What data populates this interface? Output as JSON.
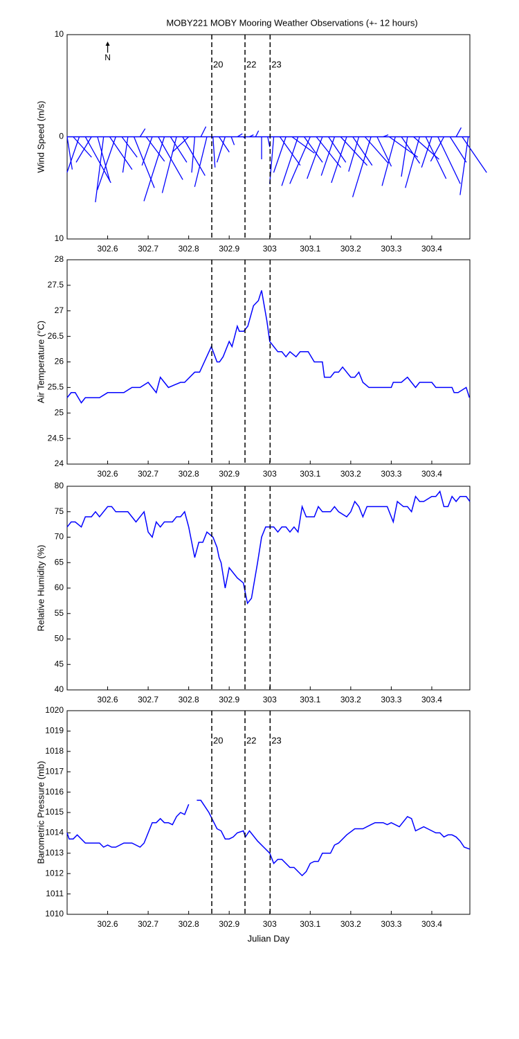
{
  "events": {
    "x": [
      302.857,
      302.939,
      303.001
    ],
    "labels": [
      "20",
      "22",
      "23"
    ],
    "color": "#cc2222"
  },
  "chart_data": [
    {
      "type": "stick",
      "title": "MOBY221 MOBY Mooring Weather Observations (+- 12 hours)",
      "ylabel": "Wind Speed (m/s)",
      "north_label": "N",
      "show_event_labels": true,
      "color": "#0000ff",
      "xlim": [
        302.5,
        303.494
      ],
      "xticks": [
        302.6,
        302.7,
        302.8,
        302.9,
        303,
        303.1,
        303.2,
        303.3,
        303.4
      ],
      "ylim": [
        -10,
        10
      ],
      "yticks": [
        {
          "value": -10,
          "label": "10"
        },
        0,
        10
      ],
      "x": [
        302.5,
        302.515,
        302.53,
        302.545,
        302.56,
        302.575,
        302.59,
        302.605,
        302.62,
        302.635,
        302.65,
        302.665,
        302.68,
        302.695,
        302.71,
        302.725,
        302.74,
        302.755,
        302.77,
        302.785,
        302.8,
        302.815,
        302.83,
        302.845,
        302.86,
        302.875,
        302.89,
        302.905,
        302.92,
        302.935,
        302.95,
        302.965,
        302.98,
        302.995,
        303.01,
        303.025,
        303.04,
        303.055,
        303.07,
        303.085,
        303.1,
        303.115,
        303.13,
        303.145,
        303.16,
        303.175,
        303.19,
        303.205,
        303.22,
        303.235,
        303.25,
        303.265,
        303.28,
        303.295,
        303.31,
        303.325,
        303.34,
        303.355,
        303.37,
        303.385,
        303.4,
        303.415,
        303.43,
        303.445,
        303.46,
        303.475,
        303.49
      ],
      "u": [
        0.5,
        1.8,
        -1.2,
        2.5,
        -1.5,
        1.2,
        -0.8,
        2.2,
        -1.8,
        1.5,
        -0.5,
        2.0,
        0.5,
        1.8,
        -1.0,
        2.4,
        -2.0,
        1.6,
        -1.4,
        2.2,
        -1.6,
        -0.3,
        0.5,
        -1.2,
        0.2,
        1.0,
        -0.8,
        0.3,
        0.5,
        0.2,
        0.4,
        0.3,
        0.0,
        0.2,
        -0.4,
        2.0,
        -1.2,
        2.2,
        -1.6,
        1.8,
        -2.0,
        2.4,
        -1.5,
        1.7,
        -1.3,
        2.6,
        -1.5,
        1.9,
        -1.0,
        2.3,
        -1.8,
        1.4,
        0.5,
        2.8,
        -1.3,
        1.8,
        -0.6,
        2.5,
        -1.4,
        2.0,
        -1.0,
        2.2,
        -1.3,
        1.6,
        0.5,
        2.4,
        -0.8
      ],
      "v": [
        -3.2,
        -2.0,
        -3.5,
        -4.5,
        -2.5,
        -4.3,
        -6.4,
        -3.2,
        -5.2,
        -2.0,
        -3.5,
        -5.0,
        0.8,
        -2.4,
        -2.8,
        -4.2,
        -6.3,
        -2.5,
        -5.5,
        -3.8,
        -1.5,
        -3.5,
        1.0,
        -4.9,
        -3.0,
        -1.5,
        -2.5,
        -0.8,
        0.3,
        -0.2,
        0.2,
        0.6,
        -2.2,
        -1.0,
        -4.6,
        -2.8,
        -3.5,
        -1.6,
        -4.8,
        -2.5,
        -4.6,
        -3.0,
        -4.1,
        -2.5,
        -3.8,
        -2.8,
        -4.5,
        -2.8,
        -3.4,
        -2.6,
        -5.9,
        -2.9,
        0.2,
        -2.0,
        -4.8,
        -2.6,
        -3.9,
        -2.2,
        -5.0,
        -4.1,
        -3.0,
        -4.6,
        -2.4,
        -2.5,
        0.9,
        -3.5,
        -5.7
      ]
    },
    {
      "type": "line",
      "ylabel": "Air Temperature (°C)",
      "show_event_labels": false,
      "color": "#0000ff",
      "xlim": [
        302.5,
        303.494
      ],
      "xticks": [
        302.6,
        302.7,
        302.8,
        302.9,
        303,
        303.1,
        303.2,
        303.3,
        303.4
      ],
      "ylim": [
        24,
        28
      ],
      "yticks": [
        24,
        24.5,
        25,
        25.5,
        26,
        26.5,
        27,
        27.5,
        28
      ],
      "x": [
        302.5,
        302.51,
        302.52,
        302.535,
        302.545,
        302.56,
        302.58,
        302.6,
        302.64,
        302.66,
        302.68,
        302.7,
        302.72,
        302.73,
        302.75,
        302.78,
        302.79,
        302.815,
        302.827,
        302.856,
        302.87,
        302.876,
        302.885,
        302.9,
        302.907,
        302.92,
        302.925,
        302.936,
        302.946,
        302.96,
        302.972,
        302.98,
        302.993,
        303.0,
        303.01,
        303.02,
        303.03,
        303.04,
        303.05,
        303.065,
        303.075,
        303.095,
        303.11,
        303.13,
        303.135,
        303.15,
        303.16,
        303.17,
        303.18,
        303.19,
        303.2,
        303.21,
        303.22,
        303.23,
        303.245,
        303.3,
        303.305,
        303.325,
        303.34,
        303.36,
        303.37,
        303.4,
        303.41,
        303.45,
        303.455,
        303.465,
        303.485,
        303.493
      ],
      "values": [
        25.3,
        25.4,
        25.4,
        25.2,
        25.3,
        25.3,
        25.3,
        25.4,
        25.4,
        25.5,
        25.5,
        25.6,
        25.4,
        25.7,
        25.5,
        25.6,
        25.6,
        25.8,
        25.8,
        26.3,
        26.0,
        26.0,
        26.1,
        26.4,
        26.3,
        26.7,
        26.6,
        26.6,
        26.7,
        27.1,
        27.2,
        27.4,
        26.8,
        26.4,
        26.3,
        26.2,
        26.2,
        26.1,
        26.2,
        26.1,
        26.2,
        26.2,
        26.0,
        26.0,
        25.7,
        25.7,
        25.8,
        25.8,
        25.9,
        25.8,
        25.7,
        25.7,
        25.8,
        25.6,
        25.5,
        25.5,
        25.6,
        25.6,
        25.7,
        25.5,
        25.6,
        25.6,
        25.5,
        25.5,
        25.4,
        25.4,
        25.5,
        25.3
      ]
    },
    {
      "type": "line",
      "ylabel": "Relative Humidity (%)",
      "show_event_labels": false,
      "color": "#0000ff",
      "xlim": [
        302.5,
        303.494
      ],
      "xticks": [
        302.6,
        302.7,
        302.8,
        302.9,
        303,
        303.1,
        303.2,
        303.3,
        303.4
      ],
      "ylim": [
        40,
        80
      ],
      "yticks": [
        40,
        45,
        50,
        55,
        60,
        65,
        70,
        75,
        80
      ],
      "x": [
        302.5,
        302.51,
        302.52,
        302.535,
        302.545,
        302.56,
        302.57,
        302.58,
        302.6,
        302.61,
        302.62,
        302.65,
        302.67,
        302.69,
        302.7,
        302.71,
        302.72,
        302.73,
        302.74,
        302.76,
        302.77,
        302.78,
        302.79,
        302.8,
        302.815,
        302.825,
        302.835,
        302.845,
        302.86,
        302.87,
        302.875,
        302.88,
        302.89,
        302.9,
        302.92,
        302.935,
        302.94,
        302.945,
        302.955,
        302.97,
        302.98,
        302.99,
        303.01,
        303.02,
        303.03,
        303.04,
        303.05,
        303.06,
        303.07,
        303.08,
        303.09,
        303.11,
        303.12,
        303.13,
        303.15,
        303.16,
        303.17,
        303.19,
        303.2,
        303.21,
        303.22,
        303.23,
        303.24,
        303.29,
        303.305,
        303.315,
        303.33,
        303.34,
        303.35,
        303.36,
        303.37,
        303.38,
        303.4,
        303.41,
        303.42,
        303.43,
        303.44,
        303.45,
        303.46,
        303.47,
        303.485,
        303.494
      ],
      "values": [
        72,
        73,
        73,
        72,
        74,
        74,
        75,
        74,
        76,
        76,
        75,
        75,
        73,
        75,
        71,
        70,
        73,
        72,
        73,
        73,
        74,
        74,
        75,
        72,
        66,
        69,
        69,
        71,
        70,
        68,
        66,
        65,
        60,
        64,
        62,
        61,
        59,
        57,
        58,
        65,
        70,
        72,
        72,
        71,
        72,
        72,
        71,
        72,
        71,
        76,
        74,
        74,
        76,
        75,
        75,
        76,
        75,
        74,
        75,
        77,
        76,
        74,
        76,
        76,
        73,
        77,
        76,
        76,
        75,
        78,
        77,
        77,
        78,
        78,
        79,
        76,
        76,
        78,
        77,
        78,
        78,
        77
      ]
    },
    {
      "type": "line",
      "ylabel": "Barometric Pressure (mb)",
      "xlabel": "Julian Day",
      "show_event_labels": true,
      "color": "#0000ff",
      "xlim": [
        302.5,
        303.494
      ],
      "xticks": [
        302.6,
        302.7,
        302.8,
        302.9,
        303,
        303.1,
        303.2,
        303.3,
        303.4
      ],
      "ylim": [
        1010,
        1020
      ],
      "yticks": [
        1010,
        1011,
        1012,
        1013,
        1014,
        1015,
        1016,
        1017,
        1018,
        1019,
        1020
      ],
      "x": [
        302.5,
        302.505,
        302.515,
        302.525,
        302.545,
        302.58,
        302.59,
        302.6,
        302.61,
        302.62,
        302.64,
        302.66,
        302.68,
        302.69,
        302.71,
        302.72,
        302.73,
        302.74,
        302.75,
        302.76,
        302.77,
        302.78,
        302.79,
        302.8,
        302.81,
        302.82,
        302.83,
        302.85,
        302.86,
        302.87,
        302.88,
        302.89,
        302.9,
        302.91,
        302.92,
        302.935,
        302.94,
        302.95,
        302.97,
        302.99,
        303.0,
        303.01,
        303.02,
        303.03,
        303.05,
        303.06,
        303.08,
        303.09,
        303.1,
        303.11,
        303.12,
        303.13,
        303.15,
        303.16,
        303.17,
        303.19,
        303.21,
        303.23,
        303.25,
        303.26,
        303.28,
        303.29,
        303.3,
        303.32,
        303.34,
        303.35,
        303.36,
        303.38,
        303.39,
        303.41,
        303.42,
        303.43,
        303.44,
        303.45,
        303.46,
        303.47,
        303.48,
        303.494
      ],
      "values": [
        1014.0,
        1013.7,
        1013.7,
        1013.9,
        1013.5,
        1013.5,
        1013.3,
        1013.4,
        1013.3,
        1013.3,
        1013.5,
        1013.5,
        1013.3,
        1013.5,
        1014.5,
        1014.5,
        1014.7,
        1014.5,
        1014.5,
        1014.4,
        1014.8,
        1015.0,
        1014.9,
        1015.4,
        null,
        1015.6,
        1015.6,
        1015.0,
        1014.6,
        1014.2,
        1014.1,
        1013.7,
        1013.7,
        1013.8,
        1014.0,
        1014.1,
        1013.8,
        1014.1,
        1013.6,
        1013.2,
        1013.0,
        1012.5,
        1012.7,
        1012.7,
        1012.3,
        1012.3,
        1011.9,
        1012.1,
        1012.5,
        1012.6,
        1012.6,
        1013.0,
        1013.0,
        1013.4,
        1013.5,
        1013.9,
        1014.2,
        1014.2,
        1014.4,
        1014.5,
        1014.5,
        1014.4,
        1014.5,
        1014.3,
        1014.8,
        1014.7,
        1014.1,
        1014.3,
        1014.2,
        1014.0,
        1014.0,
        1013.8,
        1013.9,
        1013.9,
        1013.8,
        1013.6,
        1013.3,
        1013.2
      ]
    }
  ]
}
